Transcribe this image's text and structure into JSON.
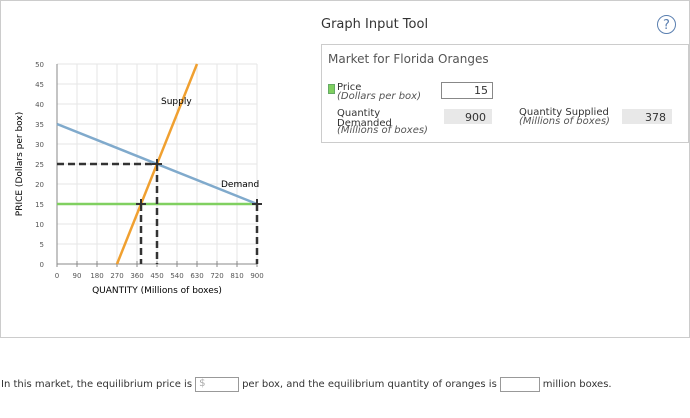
{
  "chart_data": {
    "type": "line",
    "xlabel": "QUANTITY (Millions of boxes)",
    "ylabel": "PRICE (Dollars per box)",
    "xlim": [
      0,
      900
    ],
    "ylim": [
      0,
      50
    ],
    "xticks": [
      0,
      90,
      180,
      270,
      360,
      450,
      540,
      630,
      720,
      810,
      900
    ],
    "yticks": [
      0,
      5,
      10,
      15,
      20,
      25,
      30,
      35,
      40,
      45,
      50
    ],
    "grid": true,
    "series": [
      {
        "name": "Supply",
        "color": "#f0a030",
        "x": [
          270,
          630
        ],
        "values": [
          0,
          50
        ]
      },
      {
        "name": "Demand",
        "color": "#80aacc",
        "x": [
          0,
          900
        ],
        "values": [
          35,
          15
        ]
      }
    ],
    "price_line": {
      "value": 15,
      "color": "#80d060"
    },
    "equilibrium": {
      "x": 450,
      "y": 25
    },
    "points": [
      {
        "x": 378,
        "y": 15
      },
      {
        "x": 900,
        "y": 15
      }
    ]
  },
  "tool": {
    "title": "Graph Input Tool",
    "help": "?"
  },
  "panel": {
    "title": "Market for Florida Oranges",
    "price": {
      "label": "Price",
      "unit": "(Dollars per box)",
      "value": "15"
    },
    "demanded": {
      "label": "Quantity Demanded",
      "unit": "(Millions of boxes)",
      "value": "900"
    },
    "supplied": {
      "label": "Quantity Supplied",
      "unit": "(Millions of boxes)",
      "value": "378"
    }
  },
  "question": {
    "part1": "In this market, the equilibrium price is",
    "placeholder": "$",
    "part2": "per box, and the equilibrium quantity of oranges is",
    "part3": "million boxes."
  }
}
